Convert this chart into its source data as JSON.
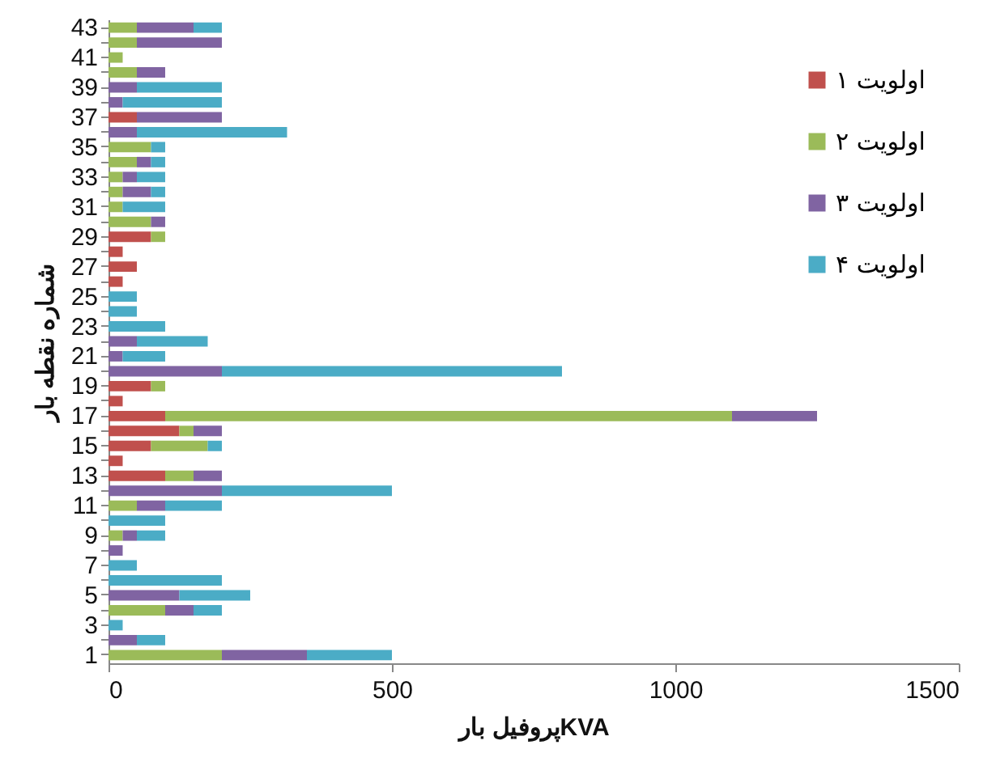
{
  "chart_data": {
    "type": "bar",
    "orientation": "horizontal",
    "stacked": true,
    "xlabel": "پروفیل بارKVA",
    "ylabel": "شماره نقطه بار",
    "categories": [
      "43",
      null,
      "41",
      null,
      "39",
      null,
      "37",
      null,
      "35",
      null,
      "33",
      null,
      "31",
      null,
      "29",
      null,
      "27",
      null,
      "25",
      null,
      "23",
      null,
      "21",
      null,
      "19",
      null,
      "17",
      null,
      "15",
      null,
      "13",
      null,
      "11",
      null,
      "9",
      null,
      "7",
      null,
      "5",
      null,
      "3",
      null,
      "1"
    ],
    "series": [
      {
        "name": "اولویت ۱",
        "color": "#c0504d",
        "values": [
          0,
          0,
          0,
          0,
          0,
          0,
          50,
          0,
          0,
          0,
          0,
          0,
          0,
          0,
          75,
          25,
          50,
          25,
          0,
          0,
          0,
          0,
          0,
          0,
          75,
          25,
          100,
          125,
          75,
          25,
          100,
          0,
          0,
          0,
          0,
          0,
          0,
          0,
          0,
          0,
          0,
          0,
          0
        ]
      },
      {
        "name": "اولویت ۲",
        "color": "#9bbb59",
        "values": [
          50,
          50,
          25,
          50,
          0,
          0,
          0,
          0,
          75,
          50,
          25,
          25,
          25,
          75,
          25,
          0,
          0,
          0,
          0,
          0,
          0,
          0,
          0,
          0,
          25,
          0,
          1000,
          25,
          100,
          0,
          50,
          0,
          50,
          0,
          25,
          0,
          0,
          0,
          0,
          100,
          0,
          0,
          200
        ]
      },
      {
        "name": "اولویت ۳",
        "color": "#8064a2",
        "values": [
          100,
          150,
          0,
          50,
          50,
          25,
          150,
          50,
          0,
          25,
          25,
          50,
          0,
          25,
          0,
          0,
          0,
          0,
          0,
          0,
          0,
          50,
          25,
          200,
          0,
          0,
          150,
          50,
          0,
          0,
          50,
          200,
          50,
          0,
          25,
          25,
          0,
          0,
          125,
          50,
          0,
          50,
          150
        ]
      },
      {
        "name": "اولویت ۴",
        "color": "#4bacc6",
        "values": [
          50,
          0,
          0,
          0,
          150,
          175,
          0,
          265,
          25,
          25,
          50,
          25,
          75,
          0,
          0,
          0,
          0,
          0,
          50,
          50,
          100,
          125,
          75,
          600,
          0,
          0,
          0,
          0,
          25,
          0,
          0,
          300,
          100,
          100,
          50,
          0,
          50,
          200,
          125,
          50,
          25,
          50,
          150
        ]
      }
    ],
    "xlim": [
      0,
      1500
    ],
    "xticks": [
      0,
      500,
      1000,
      1500
    ],
    "legend": "right"
  }
}
